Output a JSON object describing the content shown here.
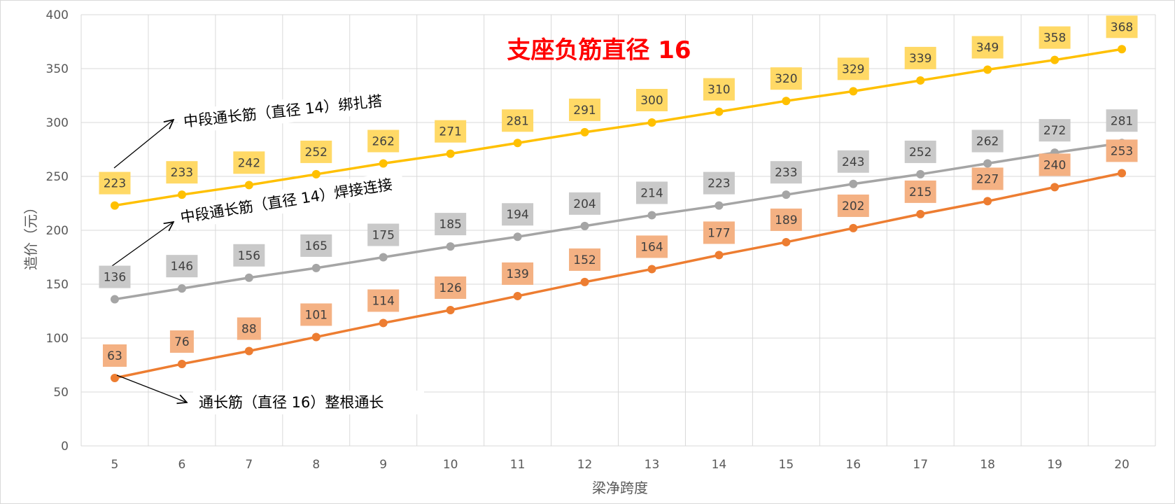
{
  "chart_data": {
    "type": "line",
    "title": "支座负筋直径 16",
    "xlabel": "梁净跨度",
    "ylabel": "造价（元）",
    "x": [
      5,
      6,
      7,
      8,
      9,
      10,
      11,
      12,
      13,
      14,
      15,
      16,
      17,
      18,
      19,
      20
    ],
    "ylim": [
      0,
      400
    ],
    "y_ticks": [
      0,
      50,
      100,
      150,
      200,
      250,
      300,
      350,
      400
    ],
    "grid": true,
    "legend": "none",
    "series": [
      {
        "name": "中段通长筋（直径 14）绑扎搭",
        "color": "#ffc000",
        "label_bg": "#ffd966",
        "values": [
          223,
          233,
          242,
          252,
          262,
          271,
          281,
          291,
          300,
          310,
          320,
          329,
          339,
          349,
          358,
          368
        ]
      },
      {
        "name": "中段通长筋（直径 14）焊接连接",
        "color": "#a5a5a5",
        "label_bg": "#c9c9c9",
        "values": [
          136,
          146,
          156,
          165,
          175,
          185,
          194,
          204,
          214,
          223,
          233,
          243,
          252,
          262,
          272,
          281
        ]
      },
      {
        "name": "通长筋（直径 16）整根通长",
        "color": "#ed7d31",
        "label_bg": "#f4b183",
        "values": [
          63,
          76,
          88,
          101,
          114,
          126,
          139,
          152,
          164,
          177,
          189,
          202,
          215,
          227,
          240,
          253
        ]
      }
    ]
  }
}
